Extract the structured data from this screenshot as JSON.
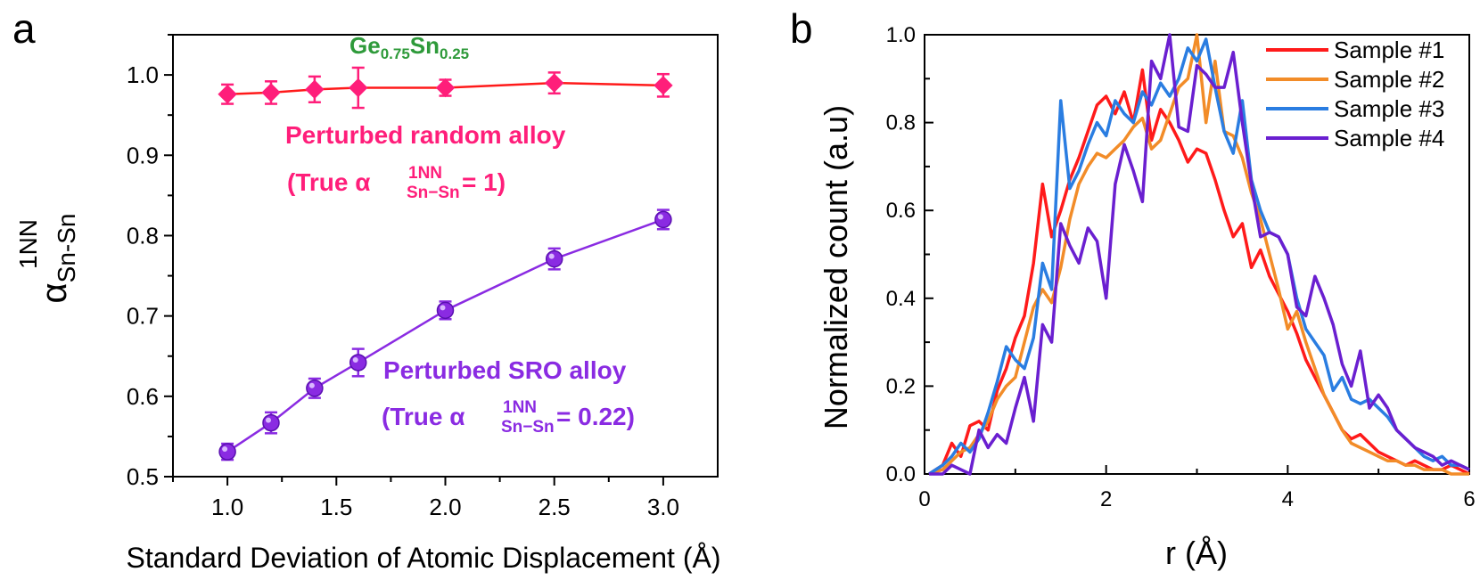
{
  "chart_data": [
    {
      "type": "scatter",
      "panel_label": "a",
      "xlabel": "Standard Deviation of Atomic Displacement (Å)",
      "ylabel_base": "α",
      "ylabel_sup": "1NN",
      "ylabel_sub": "Sn-Sn",
      "xlim": [
        0.75,
        3.25
      ],
      "ylim": [
        0.5,
        1.05
      ],
      "xticks": [
        "1.0",
        "1.5",
        "2.0",
        "2.5",
        "3.0"
      ],
      "yticks": [
        "0.5",
        "0.6",
        "0.7",
        "0.8",
        "0.9",
        "1.0"
      ],
      "composition": {
        "ge": "Ge",
        "ge_sub": "0.75",
        "sn": "Sn",
        "sn_sub": "0.25"
      },
      "series": [
        {
          "name": "Perturbed random alloy",
          "note_prefix": "(True α",
          "note_sup": "1NN",
          "note_sub": "Sn−Sn",
          "note_suffix": "= 1)",
          "color": "#ff1e7a",
          "line_color": "#ff1a1a",
          "marker": "diamond",
          "points": [
            {
              "x": 1.0,
              "y": 0.976,
              "err": 0.012
            },
            {
              "x": 1.2,
              "y": 0.978,
              "err": 0.014
            },
            {
              "x": 1.4,
              "y": 0.982,
              "err": 0.016
            },
            {
              "x": 1.6,
              "y": 0.984,
              "err": 0.025
            },
            {
              "x": 2.0,
              "y": 0.984,
              "err": 0.01
            },
            {
              "x": 2.5,
              "y": 0.99,
              "err": 0.013
            },
            {
              "x": 3.0,
              "y": 0.987,
              "err": 0.014
            }
          ]
        },
        {
          "name": "Perturbed SRO alloy",
          "note_prefix": "(True α",
          "note_sup": "1NN",
          "note_sub": "Sn−Sn",
          "note_suffix": "= 0.22)",
          "color": "#8a2be2",
          "line_color": "#8a2be2",
          "marker": "circle",
          "points": [
            {
              "x": 1.0,
              "y": 0.531,
              "err": 0.01
            },
            {
              "x": 1.2,
              "y": 0.567,
              "err": 0.013
            },
            {
              "x": 1.4,
              "y": 0.61,
              "err": 0.012
            },
            {
              "x": 1.6,
              "y": 0.642,
              "err": 0.017
            },
            {
              "x": 2.0,
              "y": 0.707,
              "err": 0.011
            },
            {
              "x": 2.5,
              "y": 0.771,
              "err": 0.013
            },
            {
              "x": 3.0,
              "y": 0.82,
              "err": 0.012
            }
          ]
        }
      ]
    },
    {
      "type": "line",
      "panel_label": "b",
      "xlabel": "r (Å)",
      "ylabel": "Normalized count (a.u)",
      "xlim": [
        0,
        6
      ],
      "ylim": [
        0,
        1.0
      ],
      "xticks": [
        "0",
        "2",
        "4",
        "6"
      ],
      "yticks": [
        "0.0",
        "0.2",
        "0.4",
        "0.6",
        "0.8",
        "1.0"
      ],
      "legend_position": "top-right",
      "series": [
        {
          "name": "Sample #1",
          "color": "#ff1a1a",
          "x": [
            0.05,
            0.2,
            0.3,
            0.4,
            0.5,
            0.6,
            0.7,
            0.8,
            0.9,
            1.0,
            1.1,
            1.2,
            1.3,
            1.4,
            1.5,
            1.6,
            1.7,
            1.8,
            1.9,
            2.0,
            2.1,
            2.2,
            2.3,
            2.4,
            2.5,
            2.6,
            2.7,
            2.8,
            2.9,
            3.0,
            3.1,
            3.2,
            3.3,
            3.4,
            3.5,
            3.6,
            3.7,
            3.8,
            3.9,
            4.0,
            4.1,
            4.2,
            4.3,
            4.4,
            4.5,
            4.6,
            4.7,
            4.8,
            4.9,
            5.0,
            5.1,
            5.2,
            5.3,
            5.4,
            5.5,
            5.6,
            5.7,
            5.8,
            5.9,
            6.0
          ],
          "y": [
            0.0,
            0.02,
            0.07,
            0.04,
            0.11,
            0.12,
            0.1,
            0.19,
            0.24,
            0.31,
            0.36,
            0.48,
            0.66,
            0.54,
            0.6,
            0.67,
            0.72,
            0.78,
            0.84,
            0.86,
            0.82,
            0.87,
            0.8,
            0.92,
            0.76,
            0.83,
            0.8,
            0.76,
            0.71,
            0.74,
            0.73,
            0.67,
            0.6,
            0.54,
            0.57,
            0.47,
            0.51,
            0.45,
            0.41,
            0.37,
            0.32,
            0.26,
            0.22,
            0.18,
            0.14,
            0.1,
            0.08,
            0.09,
            0.07,
            0.05,
            0.04,
            0.03,
            0.02,
            0.03,
            0.02,
            0.01,
            0.01,
            0.02,
            0.01,
            0.0
          ]
        },
        {
          "name": "Sample #2",
          "color": "#f28c28",
          "x": [
            0.05,
            0.2,
            0.3,
            0.4,
            0.5,
            0.6,
            0.7,
            0.8,
            0.9,
            1.0,
            1.1,
            1.2,
            1.3,
            1.4,
            1.5,
            1.6,
            1.7,
            1.8,
            1.9,
            2.0,
            2.1,
            2.2,
            2.3,
            2.4,
            2.5,
            2.6,
            2.7,
            2.8,
            2.9,
            3.0,
            3.1,
            3.2,
            3.3,
            3.4,
            3.5,
            3.6,
            3.7,
            3.8,
            3.9,
            4.0,
            4.1,
            4.2,
            4.3,
            4.4,
            4.5,
            4.6,
            4.7,
            4.8,
            4.9,
            5.0,
            5.1,
            5.2,
            5.3,
            5.4,
            5.5,
            5.6,
            5.7,
            5.8,
            5.9,
            6.0
          ],
          "y": [
            0.0,
            0.01,
            0.03,
            0.05,
            0.06,
            0.09,
            0.12,
            0.17,
            0.2,
            0.22,
            0.3,
            0.38,
            0.42,
            0.39,
            0.47,
            0.58,
            0.66,
            0.7,
            0.73,
            0.72,
            0.74,
            0.76,
            0.79,
            0.81,
            0.74,
            0.76,
            0.82,
            0.88,
            0.9,
            1.0,
            0.8,
            0.94,
            0.78,
            0.77,
            0.72,
            0.64,
            0.58,
            0.5,
            0.42,
            0.33,
            0.37,
            0.3,
            0.24,
            0.18,
            0.14,
            0.1,
            0.07,
            0.06,
            0.05,
            0.04,
            0.03,
            0.03,
            0.02,
            0.02,
            0.01,
            0.01,
            0.01,
            0.0,
            0.0,
            0.0
          ]
        },
        {
          "name": "Sample #3",
          "color": "#2a7de1",
          "x": [
            0.05,
            0.2,
            0.3,
            0.4,
            0.5,
            0.6,
            0.7,
            0.8,
            0.9,
            1.0,
            1.1,
            1.2,
            1.3,
            1.4,
            1.5,
            1.6,
            1.7,
            1.8,
            1.9,
            2.0,
            2.1,
            2.2,
            2.3,
            2.4,
            2.5,
            2.6,
            2.7,
            2.8,
            2.9,
            3.0,
            3.1,
            3.2,
            3.3,
            3.4,
            3.5,
            3.6,
            3.7,
            3.8,
            3.9,
            4.0,
            4.1,
            4.2,
            4.3,
            4.4,
            4.5,
            4.6,
            4.7,
            4.8,
            4.9,
            5.0,
            5.1,
            5.2,
            5.3,
            5.4,
            5.5,
            5.6,
            5.7,
            5.8,
            5.9,
            6.0
          ],
          "y": [
            0.0,
            0.02,
            0.04,
            0.07,
            0.05,
            0.08,
            0.14,
            0.21,
            0.29,
            0.26,
            0.24,
            0.31,
            0.48,
            0.42,
            0.85,
            0.65,
            0.69,
            0.75,
            0.8,
            0.77,
            0.85,
            0.82,
            0.8,
            0.87,
            0.84,
            0.89,
            0.86,
            0.9,
            0.97,
            0.94,
            0.99,
            0.88,
            0.78,
            0.73,
            0.85,
            0.67,
            0.6,
            0.55,
            0.54,
            0.5,
            0.4,
            0.33,
            0.3,
            0.27,
            0.19,
            0.22,
            0.17,
            0.16,
            0.17,
            0.15,
            0.13,
            0.1,
            0.08,
            0.06,
            0.04,
            0.03,
            0.04,
            0.02,
            0.02,
            0.01
          ]
        },
        {
          "name": "Sample #4",
          "color": "#6a1fd0",
          "x": [
            0.05,
            0.2,
            0.3,
            0.4,
            0.5,
            0.6,
            0.7,
            0.8,
            0.9,
            1.0,
            1.1,
            1.2,
            1.3,
            1.4,
            1.5,
            1.6,
            1.7,
            1.8,
            1.9,
            2.0,
            2.1,
            2.2,
            2.3,
            2.4,
            2.5,
            2.6,
            2.7,
            2.8,
            2.9,
            3.0,
            3.1,
            3.2,
            3.3,
            3.4,
            3.5,
            3.6,
            3.7,
            3.8,
            3.9,
            4.0,
            4.1,
            4.2,
            4.3,
            4.4,
            4.5,
            4.6,
            4.7,
            4.8,
            4.9,
            5.0,
            5.1,
            5.2,
            5.3,
            5.4,
            5.5,
            5.6,
            5.7,
            5.8,
            5.9,
            6.0
          ],
          "y": [
            0.0,
            0.0,
            0.02,
            0.01,
            0.0,
            0.1,
            0.06,
            0.09,
            0.07,
            0.15,
            0.22,
            0.12,
            0.34,
            0.3,
            0.57,
            0.52,
            0.48,
            0.56,
            0.53,
            0.4,
            0.66,
            0.75,
            0.69,
            0.62,
            0.94,
            0.9,
            1.0,
            0.79,
            0.78,
            0.93,
            0.91,
            0.88,
            0.88,
            0.96,
            0.8,
            0.66,
            0.54,
            0.55,
            0.54,
            0.5,
            0.38,
            0.36,
            0.45,
            0.4,
            0.34,
            0.25,
            0.2,
            0.28,
            0.15,
            0.18,
            0.15,
            0.1,
            0.08,
            0.06,
            0.05,
            0.04,
            0.02,
            0.03,
            0.02,
            0.01
          ]
        }
      ]
    }
  ]
}
